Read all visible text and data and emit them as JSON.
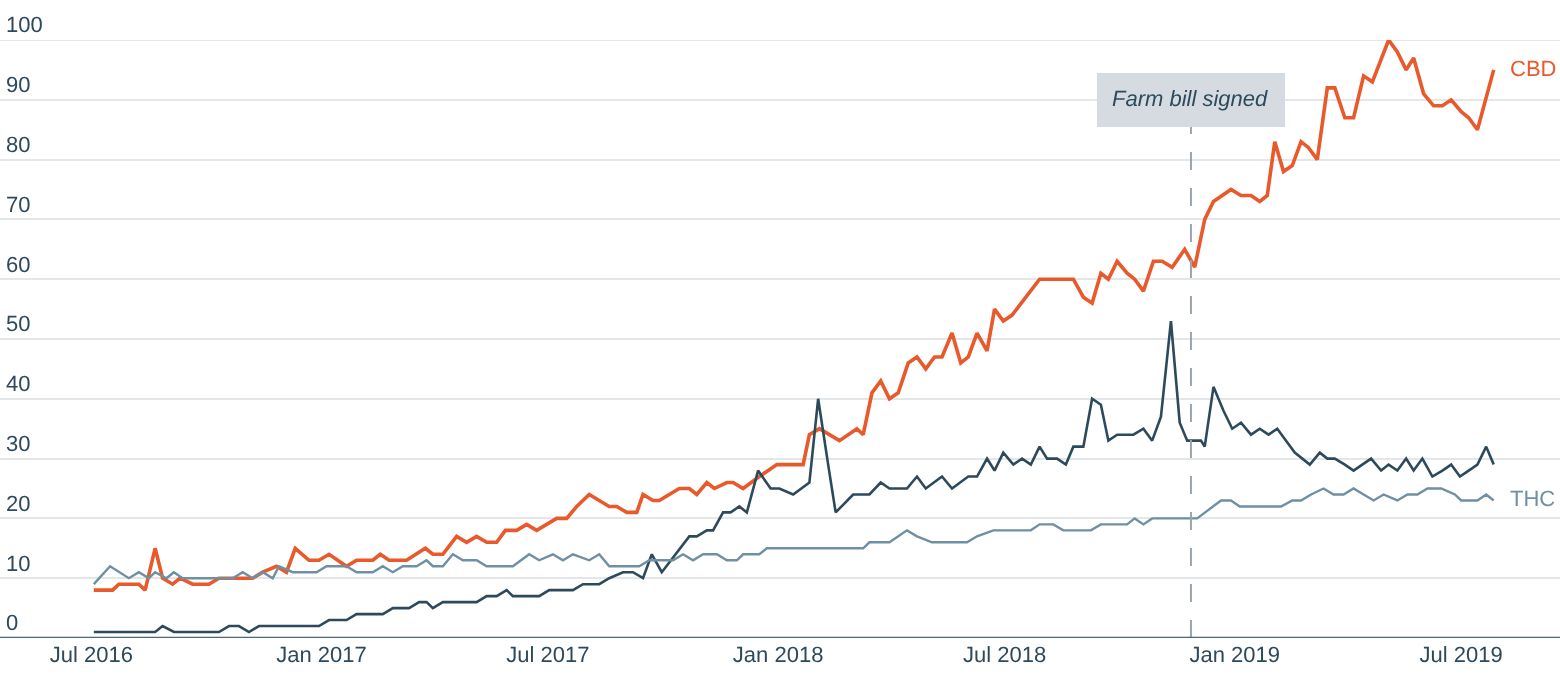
{
  "chart_data": {
    "type": "line",
    "xlim": [
      "2016-04-19",
      "2019-09-18"
    ],
    "ylim": [
      0,
      100
    ],
    "xticks": [
      {
        "value": "2016-07-01",
        "label": "Jul 2016"
      },
      {
        "value": "2017-01-01",
        "label": "Jan 2017"
      },
      {
        "value": "2017-07-01",
        "label": "Jul 2017"
      },
      {
        "value": "2018-01-01",
        "label": "Jan 2018"
      },
      {
        "value": "2018-07-01",
        "label": "Jul 2018"
      },
      {
        "value": "2019-01-01",
        "label": "Jan 2019"
      },
      {
        "value": "2019-07-01",
        "label": "Jul 2019"
      }
    ],
    "yticks": [
      0,
      10,
      20,
      30,
      40,
      50,
      60,
      70,
      80,
      90,
      100
    ],
    "grid": "y",
    "legend": false,
    "marker": "none",
    "line_style": "solid",
    "series": [
      {
        "name": "CBD",
        "color": "#e8592b",
        "x": [
          "2016-07-03",
          "2016-07-18",
          "2016-07-23",
          "2016-08-08",
          "2016-08-13",
          "2016-08-21",
          "2016-08-27",
          "2016-09-04",
          "2016-09-10",
          "2016-09-20",
          "2016-10-03",
          "2016-10-11",
          "2016-11-07",
          "2016-11-15",
          "2016-11-26",
          "2016-12-04",
          "2016-12-11",
          "2016-12-22",
          "2016-12-30",
          "2017-01-07",
          "2017-01-21",
          "2017-01-29",
          "2017-02-11",
          "2017-02-17",
          "2017-02-24",
          "2017-03-10",
          "2017-03-25",
          "2017-03-31",
          "2017-04-08",
          "2017-04-19",
          "2017-04-27",
          "2017-05-05",
          "2017-05-13",
          "2017-05-21",
          "2017-05-28",
          "2017-06-06",
          "2017-06-14",
          "2017-06-22",
          "2017-07-08",
          "2017-07-16",
          "2017-07-24",
          "2017-08-03",
          "2017-08-11",
          "2017-08-19",
          "2017-08-25",
          "2017-09-02",
          "2017-09-10",
          "2017-09-15",
          "2017-09-23",
          "2017-09-28",
          "2017-10-14",
          "2017-10-22",
          "2017-10-28",
          "2017-11-05",
          "2017-11-11",
          "2017-11-21",
          "2017-11-26",
          "2017-12-04",
          "2017-12-17",
          "2017-12-31",
          "2018-01-21",
          "2018-01-26",
          "2018-02-03",
          "2018-02-19",
          "2018-03-05",
          "2018-03-10",
          "2018-03-17",
          "2018-03-24",
          "2018-03-31",
          "2018-04-07",
          "2018-04-15",
          "2018-04-22",
          "2018-04-29",
          "2018-05-06",
          "2018-05-12",
          "2018-05-20",
          "2018-05-27",
          "2018-06-02",
          "2018-06-09",
          "2018-06-17",
          "2018-06-23",
          "2018-06-30",
          "2018-07-07",
          "2018-07-29",
          "2018-08-25",
          "2018-09-02",
          "2018-09-09",
          "2018-09-16",
          "2018-09-22",
          "2018-09-29",
          "2018-10-07",
          "2018-10-13",
          "2018-10-20",
          "2018-10-28",
          "2018-11-04",
          "2018-11-12",
          "2018-11-22",
          "2018-11-30",
          "2018-12-08",
          "2018-12-15",
          "2018-12-29",
          "2019-01-06",
          "2019-01-14",
          "2019-01-21",
          "2019-01-27",
          "2019-02-02",
          "2019-02-09",
          "2019-02-16",
          "2019-02-23",
          "2019-03-01",
          "2019-03-08",
          "2019-03-16",
          "2019-03-22",
          "2019-03-30",
          "2019-04-06",
          "2019-04-14",
          "2019-04-21",
          "2019-05-04",
          "2019-05-11",
          "2019-05-18",
          "2019-05-24",
          "2019-06-01",
          "2019-06-09",
          "2019-06-16",
          "2019-06-23",
          "2019-07-01",
          "2019-07-07",
          "2019-07-14",
          "2019-07-27"
        ],
        "values": [
          8,
          8,
          9,
          9,
          8,
          15,
          10,
          9,
          10,
          9,
          9,
          10,
          10,
          11,
          12,
          11,
          15,
          13,
          13,
          14,
          12,
          13,
          13,
          14,
          13,
          13,
          15,
          14,
          14,
          17,
          16,
          17,
          16,
          16,
          18,
          18,
          19,
          18,
          20,
          20,
          22,
          24,
          23,
          22,
          22,
          21,
          21,
          24,
          23,
          23,
          25,
          25,
          24,
          26,
          25,
          26,
          26,
          25,
          27,
          29,
          29,
          34,
          35,
          33,
          35,
          34,
          41,
          43,
          40,
          41,
          46,
          47,
          45,
          47,
          47,
          51,
          46,
          47,
          51,
          48,
          55,
          53,
          54,
          60,
          60,
          57,
          56,
          61,
          60,
          63,
          61,
          60,
          58,
          63,
          63,
          62,
          65,
          62,
          70,
          73,
          75,
          74,
          74,
          73,
          74,
          83,
          78,
          79,
          83,
          82,
          80,
          92,
          92,
          87,
          87,
          94,
          93,
          100,
          98,
          95,
          97,
          91,
          89,
          89,
          90,
          88,
          87,
          85,
          95
        ]
      },
      {
        "color": "#2d4a5c",
        "x": [
          "2016-07-03",
          "2016-08-21",
          "2016-08-27",
          "2016-09-05",
          "2016-10-11",
          "2016-10-19",
          "2016-10-27",
          "2016-11-04",
          "2016-11-12",
          "2016-12-30",
          "2017-01-07",
          "2017-01-21",
          "2017-01-29",
          "2017-02-19",
          "2017-02-27",
          "2017-03-12",
          "2017-03-20",
          "2017-03-26",
          "2017-03-31",
          "2017-04-08",
          "2017-05-05",
          "2017-05-13",
          "2017-05-21",
          "2017-05-29",
          "2017-06-03",
          "2017-06-24",
          "2017-07-02",
          "2017-07-21",
          "2017-07-29",
          "2017-08-11",
          "2017-08-19",
          "2017-08-30",
          "2017-09-07",
          "2017-09-15",
          "2017-09-22",
          "2017-09-30",
          "2017-10-22",
          "2017-10-28",
          "2017-11-05",
          "2017-11-10",
          "2017-11-18",
          "2017-11-24",
          "2017-12-01",
          "2017-12-07",
          "2017-12-16",
          "2017-12-26",
          "2018-01-02",
          "2018-01-13",
          "2018-01-26",
          "2018-02-02",
          "2018-02-10",
          "2018-02-16",
          "2018-03-02",
          "2018-03-15",
          "2018-03-24",
          "2018-03-31",
          "2018-04-14",
          "2018-04-22",
          "2018-04-29",
          "2018-05-12",
          "2018-05-20",
          "2018-06-02",
          "2018-06-09",
          "2018-06-17",
          "2018-06-23",
          "2018-06-30",
          "2018-07-08",
          "2018-07-15",
          "2018-07-22",
          "2018-07-29",
          "2018-08-04",
          "2018-08-12",
          "2018-08-19",
          "2018-08-25",
          "2018-09-02",
          "2018-09-09",
          "2018-09-16",
          "2018-09-22",
          "2018-09-29",
          "2018-10-12",
          "2018-10-20",
          "2018-10-27",
          "2018-11-03",
          "2018-11-11",
          "2018-11-18",
          "2018-11-24",
          "2018-12-05",
          "2018-12-08",
          "2018-12-15",
          "2018-12-23",
          "2018-12-30",
          "2019-01-06",
          "2019-01-14",
          "2019-01-21",
          "2019-01-28",
          "2019-02-04",
          "2019-02-11",
          "2019-02-18",
          "2019-03-02",
          "2019-03-10",
          "2019-03-16",
          "2019-03-22",
          "2019-03-30",
          "2019-04-06",
          "2019-04-20",
          "2019-04-28",
          "2019-05-04",
          "2019-05-11",
          "2019-05-18",
          "2019-05-24",
          "2019-05-31",
          "2019-06-08",
          "2019-06-16",
          "2019-06-23",
          "2019-06-30",
          "2019-07-07",
          "2019-07-14",
          "2019-07-21",
          "2019-07-27"
        ],
        "values": [
          1,
          1,
          2,
          1,
          1,
          2,
          2,
          1,
          2,
          2,
          3,
          3,
          4,
          4,
          5,
          5,
          6,
          6,
          5,
          6,
          6,
          7,
          7,
          8,
          7,
          7,
          8,
          8,
          9,
          9,
          10,
          11,
          11,
          10,
          14,
          11,
          17,
          17,
          18,
          18,
          21,
          21,
          22,
          21,
          28,
          25,
          25,
          24,
          26,
          40,
          29,
          21,
          24,
          24,
          26,
          25,
          25,
          27,
          25,
          27,
          25,
          27,
          27,
          30,
          28,
          31,
          29,
          30,
          29,
          32,
          30,
          30,
          29,
          32,
          32,
          40,
          39,
          33,
          34,
          34,
          35,
          33,
          37,
          53,
          36,
          33,
          33,
          32,
          42,
          38,
          35,
          36,
          34,
          35,
          34,
          35,
          33,
          31,
          29,
          31,
          30,
          30,
          29,
          28,
          30,
          28,
          29,
          28,
          30,
          28,
          30,
          27,
          28,
          29,
          27,
          28,
          29,
          32,
          29
        ]
      },
      {
        "name": "THC",
        "color": "#6f8fa3",
        "x": [
          "2016-07-03",
          "2016-07-16",
          "2016-07-31",
          "2016-08-08",
          "2016-08-16",
          "2016-08-21",
          "2016-08-30",
          "2016-09-05",
          "2016-09-12",
          "2016-10-22",
          "2016-10-30",
          "2016-11-07",
          "2016-11-15",
          "2016-11-23",
          "2016-11-28",
          "2016-12-09",
          "2016-12-28",
          "2017-01-05",
          "2017-01-21",
          "2017-01-29",
          "2017-02-11",
          "2017-02-19",
          "2017-02-27",
          "2017-03-07",
          "2017-03-18",
          "2017-03-26",
          "2017-03-31",
          "2017-04-08",
          "2017-04-16",
          "2017-04-24",
          "2017-05-05",
          "2017-05-13",
          "2017-06-03",
          "2017-06-16",
          "2017-06-24",
          "2017-07-05",
          "2017-07-13",
          "2017-07-21",
          "2017-08-03",
          "2017-08-11",
          "2017-08-19",
          "2017-09-12",
          "2017-09-20",
          "2017-10-09",
          "2017-10-17",
          "2017-10-25",
          "2017-11-02",
          "2017-11-13",
          "2017-11-21",
          "2017-11-29",
          "2017-12-04",
          "2017-12-17",
          "2017-12-23",
          "2018-01-02",
          "2018-03-10",
          "2018-03-15",
          "2018-03-31",
          "2018-04-14",
          "2018-04-22",
          "2018-05-04",
          "2018-06-01",
          "2018-06-09",
          "2018-06-22",
          "2018-07-22",
          "2018-07-29",
          "2018-08-09",
          "2018-08-17",
          "2018-09-08",
          "2018-09-16",
          "2018-10-07",
          "2018-10-13",
          "2018-10-20",
          "2018-10-27",
          "2018-12-02",
          "2018-12-21",
          "2018-12-29",
          "2019-01-05",
          "2019-02-07",
          "2019-02-16",
          "2019-02-23",
          "2019-03-03",
          "2019-03-13",
          "2019-03-21",
          "2019-03-29",
          "2019-04-06",
          "2019-04-14",
          "2019-04-22",
          "2019-04-30",
          "2019-05-11",
          "2019-05-19",
          "2019-05-27",
          "2019-06-04",
          "2019-06-15",
          "2019-06-26",
          "2019-07-01",
          "2019-07-14",
          "2019-07-21",
          "2019-07-27"
        ],
        "values": [
          9,
          12,
          10,
          11,
          10,
          11,
          10,
          11,
          10,
          10,
          11,
          10,
          11,
          10,
          12,
          11,
          11,
          12,
          12,
          11,
          11,
          12,
          11,
          12,
          12,
          13,
          12,
          12,
          14,
          13,
          13,
          12,
          12,
          14,
          13,
          14,
          13,
          14,
          13,
          14,
          12,
          12,
          13,
          13,
          14,
          13,
          14,
          14,
          13,
          13,
          14,
          14,
          15,
          15,
          15,
          16,
          16,
          18,
          17,
          16,
          16,
          17,
          18,
          18,
          19,
          19,
          18,
          18,
          19,
          19,
          20,
          19,
          20,
          20,
          23,
          23,
          22,
          22,
          23,
          23,
          24,
          25,
          24,
          24,
          25,
          24,
          23,
          24,
          23,
          24,
          24,
          25,
          25,
          24,
          23,
          23,
          24,
          23
        ]
      }
    ],
    "ref_lines": [
      {
        "axis": "x",
        "value": "2018-11-27",
        "label": "Farm bill signed",
        "color": "#9aa5ad",
        "line_style": "dashed"
      }
    ]
  }
}
